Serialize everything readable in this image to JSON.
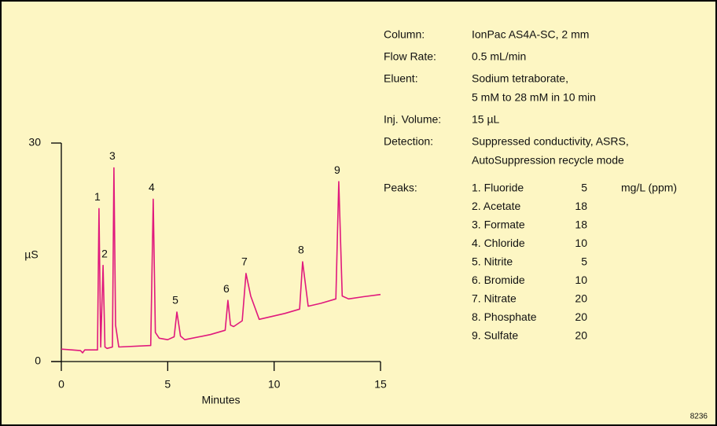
{
  "chart_data": {
    "type": "line",
    "color": "#e0197d",
    "xlabel": "Minutes",
    "ylabel": "µS",
    "xlim": [
      0,
      15
    ],
    "xticks": [
      0,
      5,
      10,
      15
    ],
    "ylim": [
      0,
      30
    ],
    "yticks": [
      0,
      30
    ],
    "x": [
      0,
      0.5,
      0.9,
      1.0,
      1.1,
      1.7,
      1.77,
      1.85,
      1.96,
      2.05,
      2.15,
      2.4,
      2.47,
      2.55,
      2.7,
      4.2,
      4.32,
      4.42,
      4.6,
      5.0,
      5.3,
      5.43,
      5.6,
      5.8,
      7.0,
      7.7,
      7.83,
      7.95,
      8.1,
      8.5,
      8.68,
      8.9,
      9.3,
      10.5,
      11.2,
      11.34,
      11.6,
      12.2,
      12.9,
      13.04,
      13.2,
      13.5,
      14.2,
      15
    ],
    "values": [
      1.7,
      1.6,
      1.5,
      1.2,
      1.6,
      1.6,
      21.0,
      2.0,
      13.2,
      2.0,
      1.8,
      2.0,
      26.6,
      5.0,
      2.0,
      2.2,
      22.3,
      4.0,
      3.2,
      3.0,
      3.4,
      6.8,
      3.5,
      3.0,
      3.7,
      4.3,
      8.4,
      5.0,
      4.8,
      5.6,
      12.1,
      9.0,
      5.8,
      6.6,
      7.2,
      13.7,
      7.6,
      8.0,
      8.6,
      24.7,
      9.0,
      8.6,
      8.9,
      9.2
    ],
    "annotations": [
      {
        "text": "1",
        "x": 1.77,
        "y": 21.0
      },
      {
        "text": "2",
        "x": 1.96,
        "y": 13.2
      },
      {
        "text": "3",
        "x": 2.47,
        "y": 26.6
      },
      {
        "text": "4",
        "x": 4.32,
        "y": 22.3
      },
      {
        "text": "5",
        "x": 5.43,
        "y": 6.8
      },
      {
        "text": "6",
        "x": 7.83,
        "y": 8.4
      },
      {
        "text": "7",
        "x": 8.68,
        "y": 12.1
      },
      {
        "text": "8",
        "x": 11.34,
        "y": 13.7
      },
      {
        "text": "9",
        "x": 13.04,
        "y": 24.7
      }
    ],
    "conditions": [
      {
        "label": "Column:",
        "value": [
          "IonPac AS4A-SC, 2 mm"
        ]
      },
      {
        "label": "Flow Rate:",
        "value": [
          "0.5 mL/min"
        ]
      },
      {
        "label": "Eluent:",
        "value": [
          "Sodium tetraborate,",
          "5 mM to 28 mM in 10 min"
        ]
      },
      {
        "label": "Inj. Volume:",
        "value": [
          "15 µL"
        ]
      },
      {
        "label": "Detection:",
        "value": [
          "Suppressed conductivity, ASRS,",
          "AutoSuppression recycle mode"
        ]
      }
    ],
    "peaks": {
      "label": "Peaks:",
      "unit": "mg/L (ppm)",
      "items": [
        {
          "name": "1. Fluoride",
          "amount": 5
        },
        {
          "name": "2. Acetate",
          "amount": 18
        },
        {
          "name": "3. Formate",
          "amount": 18
        },
        {
          "name": "4. Chloride",
          "amount": 10
        },
        {
          "name": "5. Nitrite",
          "amount": 5
        },
        {
          "name": "6. Bromide",
          "amount": 10
        },
        {
          "name": "7. Nitrate",
          "amount": 20
        },
        {
          "name": "8. Phosphate",
          "amount": 20
        },
        {
          "name": "9. Sulfate",
          "amount": 20
        }
      ]
    },
    "code": "8236"
  }
}
